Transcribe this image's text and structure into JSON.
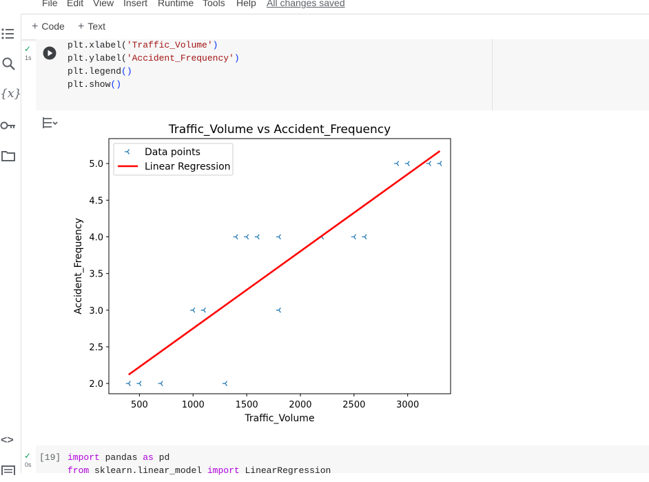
{
  "menu": {
    "items": [
      "File",
      "Edit",
      "View",
      "Insert",
      "Runtime",
      "Tools",
      "Help"
    ],
    "save_status": "All changes saved"
  },
  "toolbar": {
    "code_label": "Code",
    "text_label": "Text"
  },
  "sidebar": {
    "icons": [
      "table-of-contents-icon",
      "search-icon",
      "variables-icon",
      "key-icon",
      "folder-icon",
      "code-snippets-icon",
      "terminal-icon"
    ],
    "variables_glyph": "{x}",
    "code_glyph": "<>"
  },
  "cell1": {
    "status": "1s",
    "lines": [
      {
        "a": "plt.xlabel(",
        "b": "'Traffic_Volume'",
        "c": ")"
      },
      {
        "a": "plt.ylabel(",
        "b": "'Accident_Frequency'",
        "c": ")"
      },
      {
        "a": "plt.legend",
        "b": "",
        "c": "()"
      },
      {
        "a": "plt.show",
        "b": "",
        "c": "()"
      }
    ]
  },
  "cell2": {
    "exec_count": "[19]",
    "status": "0s",
    "line1": {
      "kw1": "import",
      "mod": " pandas ",
      "kw2": "as",
      "alias": " pd"
    },
    "line2": {
      "kw1": "from",
      "mod": " sklearn.linear_model ",
      "kw2": "import",
      "alias": " LinearRegression"
    }
  },
  "chart_data": {
    "type": "scatter",
    "title": "Traffic_Volume vs Accident_Frequency",
    "xlabel": "Traffic_Volume",
    "ylabel": "Accident_Frequency",
    "xlim": [
      215,
      3400
    ],
    "ylim": [
      1.86,
      5.34
    ],
    "xticks": [
      "500",
      "1000",
      "1500",
      "2000",
      "2500",
      "3000"
    ],
    "xtick_values": [
      500,
      1000,
      1500,
      2000,
      2500,
      3000
    ],
    "yticks": [
      "2.0",
      "2.5",
      "3.0",
      "3.5",
      "4.0",
      "4.5",
      "5.0"
    ],
    "ytick_values": [
      2.0,
      2.5,
      3.0,
      3.5,
      4.0,
      4.5,
      5.0
    ],
    "legend_position": "upper-left",
    "series": [
      {
        "name": "Data points",
        "marker": "tri-left",
        "color": "#1f77b4",
        "x": [
          400,
          500,
          700,
          1300,
          1000,
          1100,
          1800,
          1400,
          1500,
          1600,
          1800,
          2200,
          2500,
          2600,
          2900,
          3000,
          3200,
          3300
        ],
        "y": [
          2,
          2,
          2,
          2,
          3,
          3,
          3,
          4,
          4,
          4,
          4,
          4,
          4,
          4,
          5,
          5,
          5,
          5
        ]
      },
      {
        "name": "Linear Regression",
        "type": "line",
        "color": "#ff0000",
        "x": [
          400,
          3300
        ],
        "y": [
          2.12,
          5.17
        ]
      }
    ]
  }
}
